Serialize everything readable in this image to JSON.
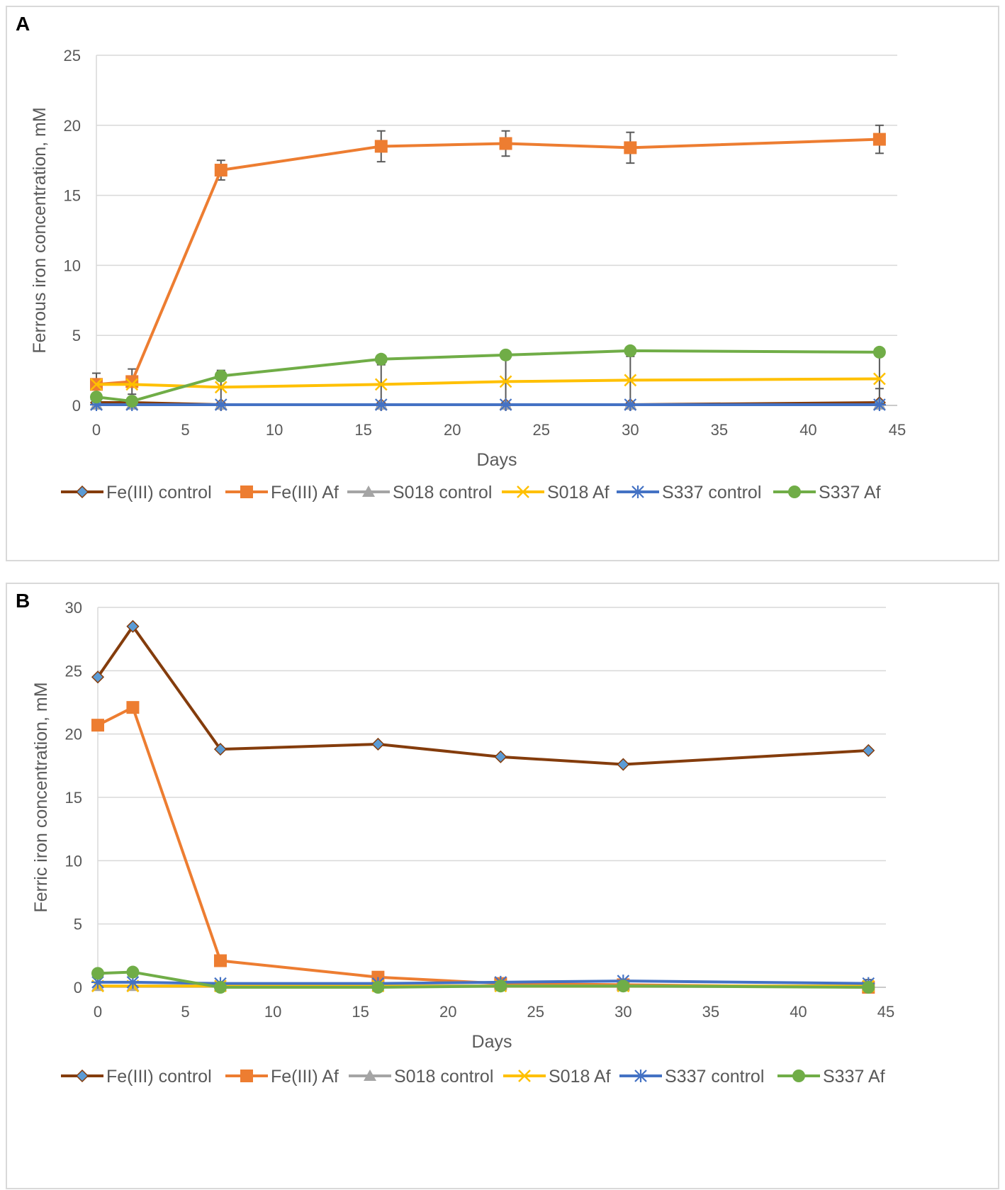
{
  "chart_data": [
    {
      "type": "line",
      "panel_label": "A",
      "xlabel": "Days",
      "ylabel": "Ferrous iron concentration, mM",
      "xlim": [
        0,
        45
      ],
      "ylim": [
        0,
        25
      ],
      "xticks": [
        "0",
        "5",
        "10",
        "15",
        "20",
        "25",
        "30",
        "35",
        "40",
        "45"
      ],
      "yticks": [
        "0",
        "5",
        "10",
        "15",
        "20",
        "25"
      ],
      "grid": "horizontal",
      "legend": "bottom",
      "x": [
        0,
        2,
        7,
        16,
        23,
        30,
        44
      ],
      "series": [
        {
          "name": "Fe(III) control",
          "color": "#843c0c",
          "marker": "diamond",
          "marker_fill": "#5b9bd5",
          "values": [
            0.2,
            0.2,
            0.05,
            0.05,
            0.05,
            0.05,
            0.2
          ],
          "errors": [
            0,
            0,
            0,
            0,
            0,
            0,
            1.0
          ]
        },
        {
          "name": "Fe(III) Af",
          "color": "#ed7d31",
          "marker": "square",
          "marker_fill": "#ed7d31",
          "values": [
            1.5,
            1.7,
            16.8,
            18.5,
            18.7,
            18.4,
            19.0
          ],
          "errors": [
            0.8,
            0.9,
            0.7,
            1.1,
            0.9,
            1.1,
            1.0
          ]
        },
        {
          "name": "S018 control",
          "color": "#a5a5a5",
          "marker": "triangle",
          "marker_fill": "#a5a5a5",
          "values": [
            0.05,
            0.05,
            0.05,
            0.05,
            0.05,
            0.05,
            0.05
          ],
          "errors": [
            0,
            0,
            0,
            0,
            0,
            0,
            0
          ]
        },
        {
          "name": "S018 Af",
          "color": "#ffc000",
          "marker": "x",
          "marker_fill": "#ffc000",
          "values": [
            1.5,
            1.5,
            1.3,
            1.5,
            1.7,
            1.8,
            1.9
          ],
          "errors": [
            0,
            0,
            1.2,
            1.4,
            1.6,
            1.7,
            1.8
          ]
        },
        {
          "name": "S337 control",
          "color": "#4472c4",
          "marker": "star",
          "marker_fill": "#4472c4",
          "values": [
            0.05,
            0.05,
            0.05,
            0.05,
            0.05,
            0.05,
            0.05
          ],
          "errors": [
            0,
            0,
            0,
            0,
            0,
            0,
            0
          ]
        },
        {
          "name": "S337 Af",
          "color": "#70ad47",
          "marker": "circle",
          "marker_fill": "#70ad47",
          "values": [
            0.6,
            0.3,
            2.1,
            3.3,
            3.6,
            3.9,
            3.8
          ],
          "errors": [
            0,
            0,
            0,
            0,
            0,
            0,
            0
          ]
        }
      ]
    },
    {
      "type": "line",
      "panel_label": "B",
      "xlabel": "Days",
      "ylabel": "Ferric iron concentration, mM",
      "xlim": [
        0,
        45
      ],
      "ylim": [
        0,
        30
      ],
      "xticks": [
        "0",
        "5",
        "10",
        "15",
        "20",
        "25",
        "30",
        "35",
        "40",
        "45"
      ],
      "yticks": [
        "0",
        "5",
        "10",
        "15",
        "20",
        "25",
        "30"
      ],
      "grid": "horizontal",
      "legend": "bottom",
      "x": [
        0,
        2,
        7,
        16,
        23,
        30,
        44
      ],
      "series": [
        {
          "name": "Fe(III) control",
          "color": "#843c0c",
          "marker": "diamond",
          "marker_fill": "#5b9bd5",
          "values": [
            24.5,
            28.5,
            18.8,
            19.2,
            18.2,
            17.6,
            18.7
          ],
          "errors": [
            0,
            0,
            0,
            0,
            0,
            0,
            0
          ]
        },
        {
          "name": "Fe(III) Af",
          "color": "#ed7d31",
          "marker": "square",
          "marker_fill": "#ed7d31",
          "values": [
            20.7,
            22.1,
            2.1,
            0.8,
            0.3,
            0.2,
            0.0
          ],
          "errors": [
            0,
            0,
            0,
            0,
            0,
            0,
            0
          ]
        },
        {
          "name": "S018 control",
          "color": "#a5a5a5",
          "marker": "triangle",
          "marker_fill": "#a5a5a5",
          "values": [
            0.1,
            0.1,
            0.1,
            0.1,
            0.1,
            0.1,
            0.1
          ],
          "errors": [
            0,
            0,
            0,
            0,
            0,
            0,
            0
          ]
        },
        {
          "name": "S018 Af",
          "color": "#ffc000",
          "marker": "x",
          "marker_fill": "#ffc000",
          "values": [
            0.1,
            0.1,
            0.1,
            0.1,
            0.1,
            0.1,
            0.1
          ],
          "errors": [
            0,
            0,
            0,
            0,
            0,
            0,
            0
          ]
        },
        {
          "name": "S337 control",
          "color": "#4472c4",
          "marker": "star",
          "marker_fill": "#4472c4",
          "values": [
            0.4,
            0.4,
            0.3,
            0.3,
            0.4,
            0.5,
            0.3
          ],
          "errors": [
            0,
            0,
            0,
            0,
            0,
            0,
            0.3
          ]
        },
        {
          "name": "S337 Af",
          "color": "#70ad47",
          "marker": "circle",
          "marker_fill": "#70ad47",
          "values": [
            1.1,
            1.2,
            0.0,
            0.0,
            0.1,
            0.1,
            0.0
          ],
          "errors": [
            0,
            0,
            0,
            0,
            0,
            0,
            0
          ]
        }
      ]
    }
  ]
}
